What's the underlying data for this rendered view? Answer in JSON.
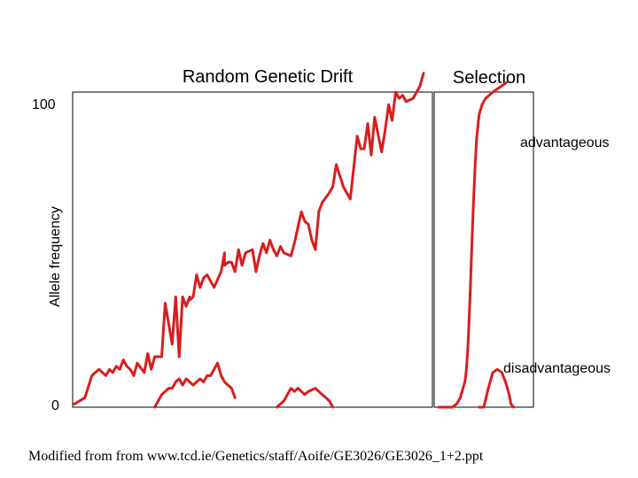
{
  "colors": {
    "curve": "#d81e1e",
    "axis": "#000000",
    "background": "#ffffff"
  },
  "chart_data": [
    {
      "type": "line",
      "title": "Random Genetic Drift",
      "ylabel": "Allele frequency",
      "yticks": [
        "100",
        "0"
      ],
      "ylim": [
        0,
        100
      ],
      "xlim": [
        0,
        100
      ],
      "series": [
        {
          "x": [
            0,
            3,
            5,
            7,
            9,
            10,
            11,
            12,
            13,
            14,
            15,
            16,
            17,
            18,
            20,
            21,
            22,
            23,
            25,
            26,
            28,
            29,
            30,
            31,
            32,
            33,
            33,
            34,
            35,
            36,
            37,
            38,
            40,
            42,
            43,
            43,
            44,
            45,
            46,
            47,
            48,
            49,
            51,
            52,
            53,
            54,
            55,
            56,
            57,
            58,
            59,
            60,
            62,
            63,
            65,
            66,
            67,
            68,
            69,
            70,
            71,
            73,
            74,
            75,
            77,
            78,
            79,
            81,
            82,
            83,
            84,
            85,
            86,
            88,
            89,
            90,
            91,
            92,
            93,
            94,
            95,
            97,
            99,
            100
          ],
          "y": [
            1,
            3,
            10,
            12,
            10,
            12,
            11,
            13,
            12,
            15,
            13,
            12,
            10,
            14,
            11,
            17,
            12,
            16,
            16,
            33,
            20,
            35,
            16,
            35,
            32,
            35,
            34,
            35,
            42,
            38,
            41,
            42,
            38,
            43,
            49,
            45,
            46,
            46,
            43,
            50,
            45,
            49,
            50,
            43,
            48,
            52,
            49,
            53,
            50,
            48,
            51,
            49,
            48,
            52,
            62,
            59,
            58,
            53,
            50,
            62,
            65,
            68,
            70,
            77,
            70,
            68,
            66,
            86,
            82,
            82,
            90,
            80,
            92,
            81,
            88,
            96,
            91,
            100,
            98,
            99,
            97,
            98,
            102,
            106
          ]
        },
        {
          "x": [
            23,
            25,
            27,
            28,
            29,
            30,
            31,
            32,
            33,
            34,
            35,
            36,
            37,
            38,
            39,
            40,
            41,
            42,
            43,
            44,
            45,
            46
          ],
          "y": [
            0,
            4,
            6,
            6,
            8,
            9,
            7,
            9,
            8,
            7,
            8,
            9,
            8,
            10,
            10,
            12,
            14,
            10,
            8,
            7,
            6,
            3
          ]
        },
        {
          "x": [
            58,
            60,
            61,
            62,
            63,
            64,
            65,
            66,
            67,
            69,
            71,
            72,
            73,
            74
          ],
          "y": [
            0,
            2,
            4,
            6,
            5,
            6,
            5,
            4,
            5,
            6,
            4,
            3,
            2,
            0
          ]
        }
      ]
    },
    {
      "type": "line",
      "title": "Selection",
      "ylim": [
        0,
        100
      ],
      "xlim": [
        0,
        100
      ],
      "series": [
        {
          "name": "advantageous",
          "x": [
            0,
            10,
            15,
            20,
            24,
            27,
            29,
            30,
            31,
            32,
            33,
            34,
            35,
            36,
            37,
            38,
            39,
            40,
            41,
            42,
            43,
            44,
            45,
            48,
            52,
            56,
            60,
            65,
            70,
            75
          ],
          "y": [
            0,
            0,
            0,
            1,
            3,
            6,
            8,
            10,
            13,
            17,
            23,
            30,
            37,
            45,
            53,
            61,
            68,
            74,
            80,
            85,
            88,
            91,
            93,
            96,
            98,
            99,
            100,
            101,
            102,
            103
          ]
        },
        {
          "name": "disadvantageous",
          "x": [
            45,
            50,
            55,
            60,
            65,
            70,
            74,
            78,
            80,
            83
          ],
          "y": [
            0,
            0,
            6,
            11,
            12,
            11,
            8,
            4,
            1,
            0
          ]
        }
      ]
    }
  ],
  "footer": {
    "text_before": "Modified from from ",
    "link": "www.tcd.ie/Genetics/staff/Aoife/GE3026/GE3026_1+2.ppt"
  }
}
